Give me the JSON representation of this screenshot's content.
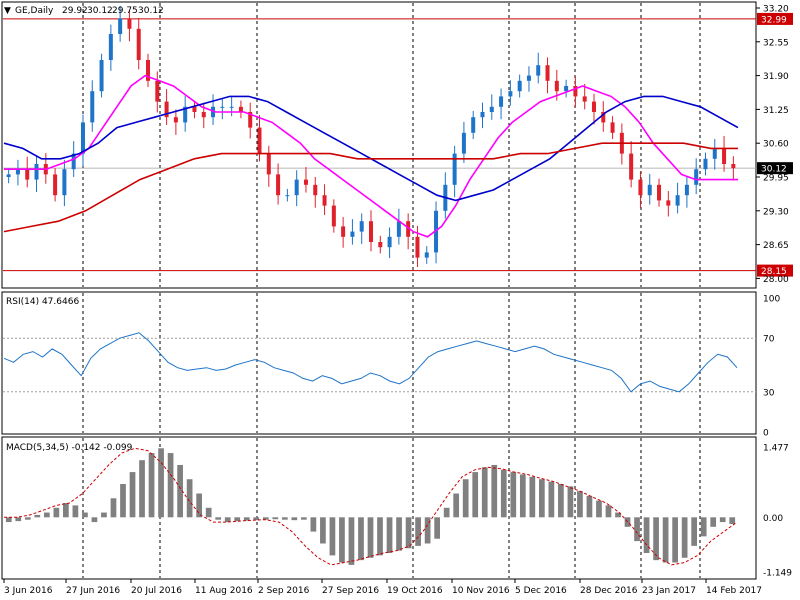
{
  "chart_data": [
    {
      "type": "candlestick",
      "symbol_label": "GE,Daily",
      "ohlc_readout": [
        "29.92",
        "30.12",
        "29.75",
        "30.12"
      ],
      "price_levels": [
        {
          "value": 32.99,
          "label": "32.99"
        },
        {
          "value": 28.15,
          "label": "28.15"
        }
      ],
      "current_price": {
        "value": 30.12,
        "label": "30.12"
      },
      "ylim": [
        27.95,
        33.2
      ],
      "y_ticks": [
        "33.20",
        "32.55",
        "31.90",
        "31.25",
        "30.60",
        "29.95",
        "29.30",
        "28.65",
        "28.00"
      ],
      "close_trail": [
        30.0,
        30.1,
        29.9,
        30.2,
        30.0,
        29.6,
        30.1,
        30.4,
        31.0,
        31.6,
        32.2,
        32.7,
        33.0,
        32.8,
        32.2,
        31.8,
        31.4,
        31.1,
        31.0,
        31.3,
        31.2,
        31.1,
        31.3,
        31.3,
        31.3,
        31.2,
        30.9,
        30.4,
        30.0,
        29.6,
        29.6,
        29.9,
        29.8,
        29.6,
        29.4,
        29.0,
        28.8,
        28.9,
        29.1,
        28.7,
        28.6,
        28.8,
        29.1,
        28.8,
        28.4,
        28.5,
        29.3,
        29.8,
        30.4,
        30.8,
        31.1,
        31.2,
        31.3,
        31.5,
        31.6,
        31.8,
        31.9,
        32.1,
        31.8,
        31.6,
        31.7,
        31.5,
        31.4,
        31.2,
        31.0,
        30.8,
        30.4,
        29.9,
        29.6,
        29.8,
        29.5,
        29.4,
        29.6,
        29.8,
        30.1,
        30.3,
        30.5,
        30.2,
        30.12
      ],
      "series": [
        {
          "name": "ma-magenta",
          "color": "#ff00ff",
          "values": [
            30.1,
            30.1,
            30.1,
            30.1,
            30.2,
            30.3,
            30.5,
            30.9,
            31.3,
            31.7,
            31.9,
            31.8,
            31.7,
            31.5,
            31.3,
            31.2,
            31.2,
            31.2,
            31.1,
            31.0,
            30.8,
            30.6,
            30.3,
            30.1,
            29.9,
            29.7,
            29.5,
            29.3,
            29.1,
            28.9,
            28.8,
            29.0,
            29.4,
            29.9,
            30.3,
            30.7,
            31.0,
            31.2,
            31.4,
            31.5,
            31.6,
            31.7,
            31.6,
            31.5,
            31.3,
            31.0,
            30.6,
            30.3,
            30.0,
            29.9,
            29.9,
            29.9,
            29.9
          ]
        },
        {
          "name": "ma-blue",
          "color": "#0000cc",
          "values": [
            30.6,
            30.5,
            30.3,
            30.3,
            30.4,
            30.6,
            30.9,
            31.0,
            31.1,
            31.2,
            31.3,
            31.4,
            31.5,
            31.5,
            31.4,
            31.2,
            31.0,
            30.8,
            30.6,
            30.4,
            30.2,
            30.0,
            29.8,
            29.6,
            29.5,
            29.6,
            29.7,
            29.9,
            30.1,
            30.3,
            30.6,
            30.9,
            31.2,
            31.4,
            31.5,
            31.5,
            31.4,
            31.3,
            31.1,
            30.9
          ]
        },
        {
          "name": "ma-red",
          "color": "#cc0000",
          "values": [
            28.9,
            29.0,
            29.1,
            29.3,
            29.6,
            29.9,
            30.1,
            30.3,
            30.4,
            30.4,
            30.4,
            30.4,
            30.4,
            30.3,
            30.3,
            30.3,
            30.3,
            30.3,
            30.3,
            30.4,
            30.4,
            30.5,
            30.6,
            30.6,
            30.6,
            30.6,
            30.5,
            30.5
          ]
        }
      ],
      "x_ticks": [
        "3 Jun 2016",
        "27 Jun 2016",
        "20 Jul 2016",
        "11 Aug 2016",
        "2 Sep 2016",
        "27 Sep 2016",
        "19 Oct 2016",
        "10 Nov 2016",
        "5 Dec 2016",
        "28 Dec 2016",
        "23 Jan 2017",
        "14 Feb 2017"
      ]
    },
    {
      "type": "line",
      "title": "RSI(14) 47.6466",
      "ylim": [
        0,
        100
      ],
      "y_ticks": [
        "100",
        "70",
        "30",
        "0"
      ],
      "series": [
        {
          "name": "RSI",
          "color": "#1e74c8",
          "values": [
            55,
            52,
            58,
            60,
            56,
            62,
            58,
            50,
            42,
            55,
            62,
            66,
            70,
            72,
            74,
            68,
            60,
            52,
            48,
            46,
            47,
            48,
            46,
            47,
            50,
            52,
            54,
            52,
            48,
            46,
            44,
            40,
            38,
            42,
            40,
            36,
            38,
            40,
            44,
            42,
            38,
            36,
            40,
            48,
            56,
            60,
            62,
            64,
            66,
            68,
            66,
            64,
            62,
            60,
            62,
            64,
            62,
            58,
            56,
            54,
            52,
            50,
            48,
            46,
            40,
            30,
            36,
            38,
            34,
            32,
            30,
            36,
            44,
            52,
            58,
            56,
            48
          ]
        }
      ]
    },
    {
      "type": "bar",
      "title": "MACD(5,34,5) -0.142 -0.099",
      "ylim": [
        -1.149,
        1.477
      ],
      "y_ticks": [
        "1.477",
        "0.00",
        "-1.149"
      ],
      "series": [
        {
          "name": "histogram",
          "color": "#808080",
          "values": [
            -0.1,
            -0.08,
            -0.05,
            0.05,
            0.1,
            0.2,
            0.3,
            0.25,
            0.1,
            -0.1,
            0.1,
            0.4,
            0.7,
            0.95,
            1.2,
            1.35,
            1.45,
            1.35,
            1.1,
            0.8,
            0.5,
            0.2,
            -0.05,
            -0.1,
            -0.08,
            -0.07,
            -0.06,
            -0.05,
            -0.04,
            -0.05,
            -0.06,
            -0.05,
            -0.3,
            -0.55,
            -0.8,
            -0.95,
            -1.0,
            -0.9,
            -0.85,
            -0.8,
            -0.75,
            -0.7,
            -0.65,
            -0.6,
            -0.55,
            -0.45,
            0.2,
            0.5,
            0.8,
            0.95,
            1.05,
            1.1,
            1.0,
            0.95,
            0.9,
            0.85,
            0.8,
            0.75,
            0.7,
            0.65,
            0.55,
            0.45,
            0.35,
            0.25,
            0.1,
            -0.2,
            -0.5,
            -0.75,
            -0.9,
            -0.95,
            -0.95,
            -0.85,
            -0.6,
            -0.4,
            -0.2,
            -0.1,
            -0.14
          ]
        },
        {
          "name": "signal",
          "color": "#cc0000",
          "values": [
            0.0,
            0.0,
            0.05,
            0.15,
            0.25,
            0.3,
            0.5,
            0.8,
            1.1,
            1.35,
            1.45,
            1.4,
            1.15,
            0.8,
            0.4,
            0.05,
            -0.1,
            -0.1,
            -0.08,
            -0.06,
            -0.05,
            -0.1,
            -0.3,
            -0.6,
            -0.85,
            -1.0,
            -0.95,
            -0.9,
            -0.82,
            -0.75,
            -0.7,
            -0.6,
            -0.3,
            0.1,
            0.5,
            0.85,
            1.0,
            1.05,
            1.02,
            0.95,
            0.9,
            0.82,
            0.75,
            0.65,
            0.55,
            0.42,
            0.3,
            0.1,
            -0.2,
            -0.55,
            -0.85,
            -1.0,
            -0.95,
            -0.8,
            -0.5,
            -0.3,
            -0.1
          ]
        }
      ]
    }
  ]
}
